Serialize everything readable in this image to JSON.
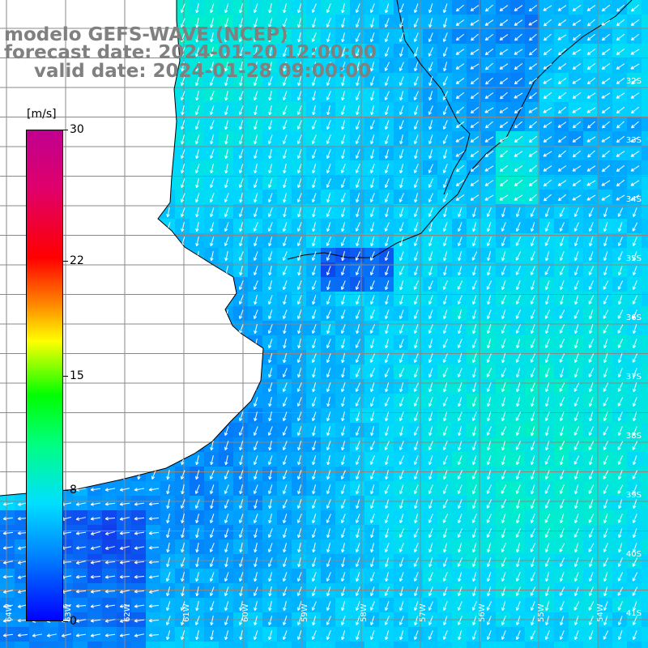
{
  "title": {
    "line1": "modelo GEFS-WAVE (NCEP)",
    "line2": "forecast date: 2024-01-20 12:00:00",
    "line3": "valid date: 2024-01-28 09:00:00"
  },
  "colorbar": {
    "unit": "[m/s]",
    "ticks": [
      "30",
      "22",
      "15",
      "8",
      "0"
    ],
    "tick_values": [
      30,
      22,
      15,
      8,
      0
    ],
    "range": [
      0,
      30
    ]
  },
  "map_grid": {
    "lat_labels": [
      "32S",
      "33S",
      "34S",
      "35S",
      "36S",
      "37S",
      "38S",
      "39S",
      "40S",
      "41S"
    ],
    "lon_labels": [
      "64W",
      "63W",
      "62W",
      "61W",
      "60W",
      "59W",
      "58W",
      "57W",
      "56W",
      "55W",
      "54W"
    ]
  },
  "wind_field": {
    "variable": "wind speed",
    "arrow_color": "#ffffff",
    "coast_color": "#000000"
  }
}
